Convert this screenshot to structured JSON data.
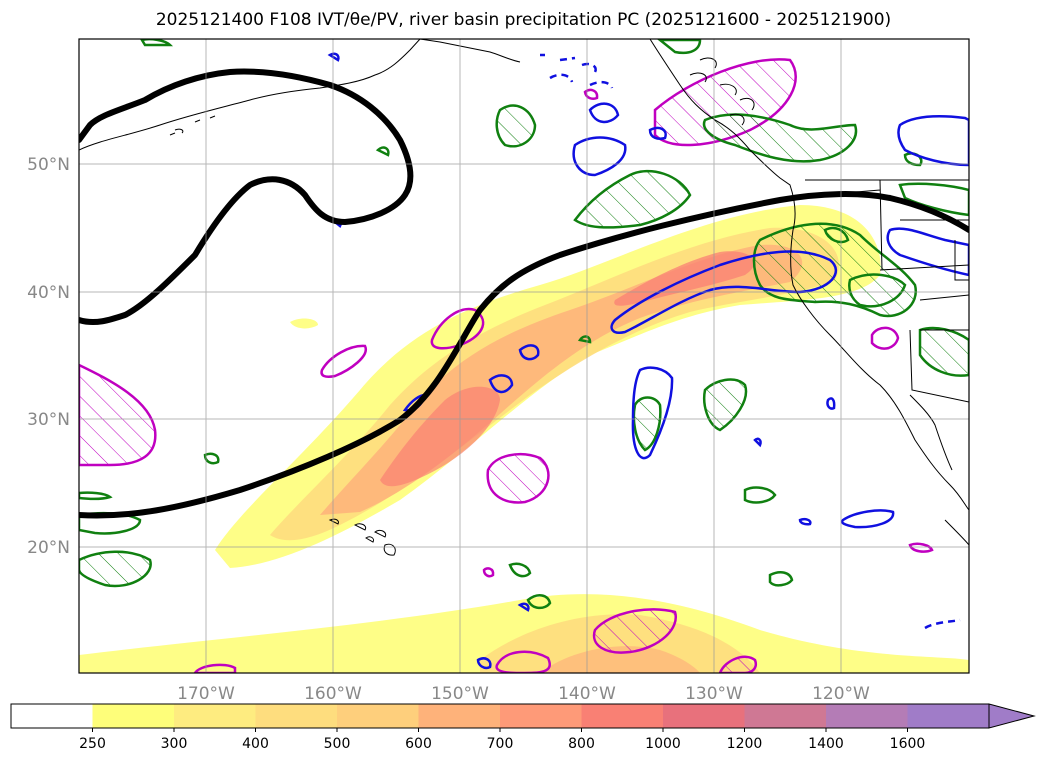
{
  "title": "2025121400 F108 IVT/θe/PV, river basin precipitation PC (2025121600 - 2025121900)",
  "map": {
    "lat_labels": [
      "50°N",
      "40°N",
      "30°N",
      "20°N"
    ],
    "lon_labels": [
      "170°W",
      "160°W",
      "150°W",
      "140°W",
      "130°W",
      "120°W"
    ]
  },
  "colorbar": {
    "levels": [
      "250",
      "300",
      "400",
      "500",
      "600",
      "700",
      "800",
      "1000",
      "1200",
      "1400",
      "1600"
    ],
    "colors": [
      "#ffffff",
      "#fefe7a",
      "#feec80",
      "#fedd7e",
      "#fecf7c",
      "#feb27a",
      "#fe9a78",
      "#f98074",
      "#e8717c",
      "#cf7894",
      "#b47cb6",
      "#a07cc8"
    ]
  }
}
